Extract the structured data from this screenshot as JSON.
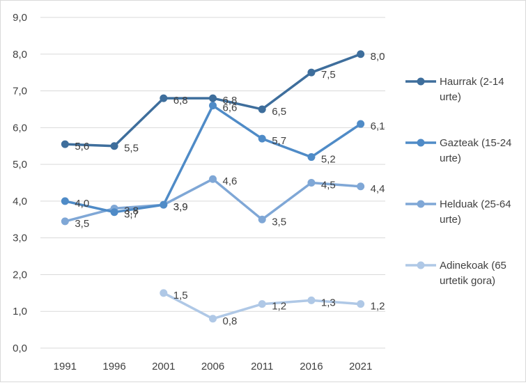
{
  "chart_data": {
    "type": "line",
    "title": "",
    "xlabel": "",
    "ylabel": "",
    "categories": [
      "1991",
      "1996",
      "2001",
      "2006",
      "2011",
      "2016",
      "2021"
    ],
    "ylim": [
      0,
      9
    ],
    "ytick_labels": [
      "0,0",
      "1,0",
      "2,0",
      "3,0",
      "4,0",
      "5,0",
      "6,0",
      "7,0",
      "8,0",
      "9,0"
    ],
    "grid": true,
    "legend_position": "right",
    "series": [
      {
        "name": "Haurrak (2-14 urte)",
        "legend_lines": [
          "Haurrak (2-14",
          "urte)"
        ],
        "color": "#3e6e9c",
        "values": [
          5.55,
          5.5,
          6.8,
          6.8,
          6.5,
          7.5,
          8.0
        ],
        "labels": [
          "5,6",
          "5,5",
          "6,8",
          "6,8",
          "6,5",
          "7,5",
          "8,0"
        ]
      },
      {
        "name": "Gazteak (15-24 urte)",
        "legend_lines": [
          "Gazteak (15-24",
          "urte)"
        ],
        "color": "#4f8bc7",
        "values": [
          4.0,
          3.7,
          3.9,
          6.6,
          5.7,
          5.2,
          6.1
        ],
        "labels": [
          "4,0",
          "3,7",
          "3,9",
          "6,6",
          "5,7",
          "5,2",
          "6,1"
        ]
      },
      {
        "name": "Helduak (25-64 urte)",
        "legend_lines": [
          "Helduak (25-64",
          "urte)"
        ],
        "color": "#7fa7d6",
        "values": [
          3.45,
          3.8,
          3.9,
          4.6,
          3.5,
          4.5,
          4.4
        ],
        "labels": [
          "3,5",
          "3,8",
          "3,9",
          "4,6",
          "3,5",
          "4,5",
          "4,4"
        ]
      },
      {
        "name": "Adinekoak (65 urtetik gora)",
        "legend_lines": [
          "Adinekoak (65",
          "urtetik gora)"
        ],
        "color": "#afc8e6",
        "values": [
          null,
          null,
          1.5,
          0.8,
          1.2,
          1.3,
          1.2
        ],
        "labels": [
          null,
          null,
          "1,5",
          "0,8",
          "1,2",
          "1,3",
          "1,2"
        ]
      }
    ]
  }
}
